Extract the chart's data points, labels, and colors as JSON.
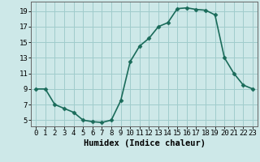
{
  "x": [
    0,
    1,
    2,
    3,
    4,
    5,
    6,
    7,
    8,
    9,
    10,
    11,
    12,
    13,
    14,
    15,
    16,
    17,
    18,
    19,
    20,
    21,
    22,
    23
  ],
  "y": [
    9,
    9,
    7,
    6.5,
    6,
    5,
    4.8,
    4.7,
    5,
    7.5,
    12.5,
    14.5,
    15.5,
    17,
    17.5,
    19.3,
    19.4,
    19.2,
    19.1,
    18.5,
    13,
    11,
    9.5,
    9
  ],
  "line_color": "#1a6b5a",
  "marker": "D",
  "marker_size": 2.5,
  "bg_color": "#cde8e8",
  "grid_color": "#a0cccc",
  "xlabel": "Humidex (Indice chaleur)",
  "xlim": [
    -0.5,
    23.5
  ],
  "ylim": [
    4.2,
    20.2
  ],
  "yticks": [
    5,
    7,
    9,
    11,
    13,
    15,
    17,
    19
  ],
  "xticks": [
    0,
    1,
    2,
    3,
    4,
    5,
    6,
    7,
    8,
    9,
    10,
    11,
    12,
    13,
    14,
    15,
    16,
    17,
    18,
    19,
    20,
    21,
    22,
    23
  ],
  "xlabel_fontsize": 7.5,
  "tick_fontsize": 6.5,
  "linewidth": 1.2
}
